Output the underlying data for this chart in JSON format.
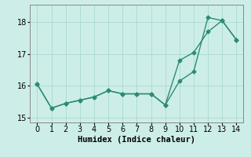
{
  "series1_x": [
    0,
    1,
    2,
    3,
    4,
    5,
    6,
    7,
    8,
    9,
    10,
    11,
    12,
    13,
    14
  ],
  "series1_y": [
    16.05,
    15.3,
    15.45,
    15.55,
    15.65,
    15.85,
    15.75,
    15.75,
    15.75,
    15.4,
    16.15,
    16.45,
    18.15,
    18.05,
    17.45
  ],
  "series2_x": [
    0,
    1,
    2,
    3,
    4,
    5,
    6,
    7,
    8,
    9,
    10,
    11,
    12,
    13,
    14
  ],
  "series2_y": [
    16.05,
    15.3,
    15.45,
    15.55,
    15.65,
    15.85,
    15.75,
    15.75,
    15.75,
    15.4,
    16.8,
    17.05,
    17.7,
    18.05,
    17.45
  ],
  "color": "#2e8b74",
  "bg_color": "#cdeee8",
  "grid_color": "#aad8d0",
  "xlim": [
    -0.5,
    14.5
  ],
  "ylim": [
    14.85,
    18.55
  ],
  "yticks": [
    15,
    16,
    17,
    18
  ],
  "xticks": [
    0,
    1,
    2,
    3,
    4,
    5,
    6,
    7,
    8,
    9,
    10,
    11,
    12,
    13,
    14
  ],
  "xlabel": "Humidex (Indice chaleur)",
  "xlabel_fontsize": 7.5,
  "tick_fontsize": 7,
  "marker": "D",
  "marker_size": 2.5,
  "line_width": 1.0
}
